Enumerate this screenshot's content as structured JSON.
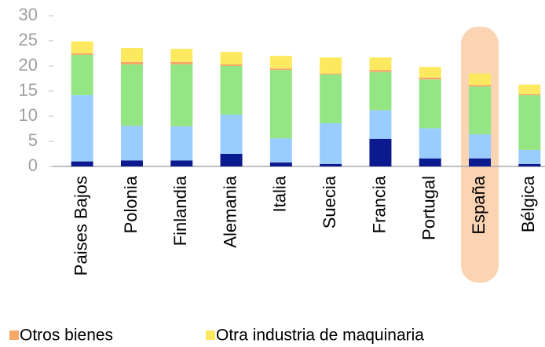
{
  "chart_data": {
    "type": "stacked_bar",
    "categories": [
      "Paises Bajos",
      "Polonia",
      "Finlandia",
      "Alemania",
      "Italia",
      "Suecia",
      "Francia",
      "Portugal",
      "España",
      "Bélgica"
    ],
    "series": [
      {
        "color": "#0b1a8f",
        "values": [
          1.0,
          1.2,
          1.2,
          2.5,
          0.8,
          0.5,
          5.5,
          1.6,
          1.6,
          0.5
        ]
      },
      {
        "color": "#99ccff",
        "values": [
          13.2,
          6.9,
          6.8,
          7.8,
          4.8,
          8.1,
          5.7,
          6.0,
          4.8,
          2.8
        ]
      },
      {
        "color": "#93e683",
        "values": [
          8.0,
          12.2,
          12.3,
          9.7,
          13.6,
          9.7,
          7.6,
          9.7,
          9.5,
          10.9
        ]
      },
      {
        "name": "Otros bienes",
        "color": "#f5a868",
        "values": [
          0.3,
          0.5,
          0.5,
          0.3,
          0.3,
          0.2,
          0.4,
          0.4,
          0.3,
          0.2
        ]
      },
      {
        "name": "Otra industria de maquinaria",
        "color": "#fde95f",
        "values": [
          2.4,
          2.8,
          2.6,
          2.5,
          2.5,
          3.2,
          2.5,
          2.1,
          2.3,
          1.9
        ]
      }
    ],
    "ylim": [
      0,
      30
    ],
    "yticks": [
      0,
      5,
      10,
      15,
      20,
      25,
      30
    ],
    "highlight": "España",
    "highlight_color": "#fbd4b3"
  }
}
